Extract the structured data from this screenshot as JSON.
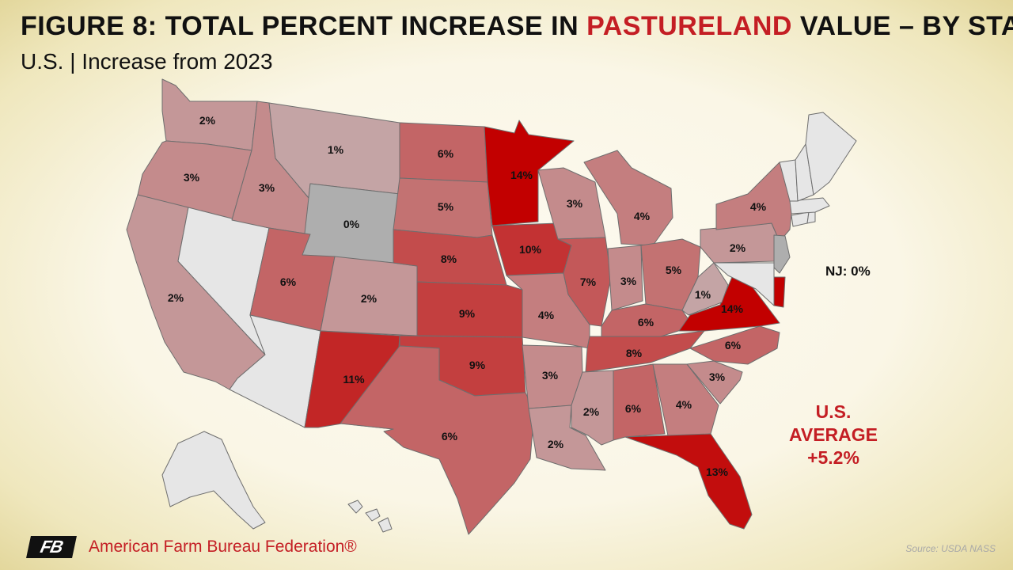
{
  "header": {
    "title_prefix": "FIGURE 8: TOTAL PERCENT INCREASE IN ",
    "title_highlight": "PASTURELAND",
    "title_suffix": " VALUE – BY STATE",
    "subtitle": "U.S. | Increase from 2023"
  },
  "legend_scale": {
    "no_data_color": "#e6e6e6",
    "zero_color": "#aeaeae",
    "low_color": "#c4a4a5",
    "high_color": "#c20000"
  },
  "states": [
    {
      "code": "WA",
      "value": 2,
      "label": "2%"
    },
    {
      "code": "OR",
      "value": 3,
      "label": "3%"
    },
    {
      "code": "CA",
      "value": 2,
      "label": "2%"
    },
    {
      "code": "NV",
      "value": null,
      "label": ""
    },
    {
      "code": "ID",
      "value": 3,
      "label": "3%"
    },
    {
      "code": "MT",
      "value": 1,
      "label": "1%"
    },
    {
      "code": "WY",
      "value": 0,
      "label": "0%"
    },
    {
      "code": "UT",
      "value": 6,
      "label": "6%"
    },
    {
      "code": "AZ",
      "value": null,
      "label": ""
    },
    {
      "code": "CO",
      "value": 2,
      "label": "2%"
    },
    {
      "code": "NM",
      "value": 11,
      "label": "11%"
    },
    {
      "code": "ND",
      "value": 6,
      "label": "6%"
    },
    {
      "code": "SD",
      "value": 5,
      "label": "5%"
    },
    {
      "code": "NE",
      "value": 8,
      "label": "8%"
    },
    {
      "code": "KS",
      "value": 9,
      "label": "9%"
    },
    {
      "code": "OK",
      "value": 9,
      "label": "9%"
    },
    {
      "code": "TX",
      "value": 6,
      "label": "6%"
    },
    {
      "code": "MN",
      "value": 14,
      "label": "14%"
    },
    {
      "code": "IA",
      "value": 10,
      "label": "10%"
    },
    {
      "code": "MO",
      "value": 4,
      "label": "4%"
    },
    {
      "code": "AR",
      "value": 3,
      "label": "3%"
    },
    {
      "code": "LA",
      "value": 2,
      "label": "2%"
    },
    {
      "code": "WI",
      "value": 3,
      "label": "3%"
    },
    {
      "code": "IL",
      "value": 7,
      "label": "7%"
    },
    {
      "code": "MI",
      "value": 4,
      "label": "4%"
    },
    {
      "code": "IN",
      "value": 3,
      "label": "3%"
    },
    {
      "code": "OH",
      "value": 5,
      "label": "5%"
    },
    {
      "code": "KY",
      "value": 6,
      "label": "6%"
    },
    {
      "code": "TN",
      "value": 8,
      "label": "8%"
    },
    {
      "code": "MS",
      "value": 2,
      "label": "2%"
    },
    {
      "code": "AL",
      "value": 6,
      "label": "6%"
    },
    {
      "code": "GA",
      "value": 4,
      "label": "4%"
    },
    {
      "code": "FL",
      "value": 13,
      "label": "13%"
    },
    {
      "code": "SC",
      "value": 3,
      "label": "3%"
    },
    {
      "code": "NC",
      "value": 6,
      "label": "6%"
    },
    {
      "code": "VA",
      "value": 14,
      "label": "14%"
    },
    {
      "code": "WV",
      "value": 1,
      "label": "1%"
    },
    {
      "code": "PA",
      "value": 2,
      "label": "2%"
    },
    {
      "code": "NY",
      "value": 4,
      "label": "4%"
    },
    {
      "code": "NJ",
      "value": 0,
      "label": ""
    },
    {
      "code": "DE",
      "value": 14,
      "label": ""
    },
    {
      "code": "MD",
      "value": null,
      "label": ""
    },
    {
      "code": "CT",
      "value": null,
      "label": ""
    },
    {
      "code": "RI",
      "value": null,
      "label": ""
    },
    {
      "code": "MA",
      "value": null,
      "label": ""
    },
    {
      "code": "VT",
      "value": null,
      "label": ""
    },
    {
      "code": "NH",
      "value": null,
      "label": ""
    },
    {
      "code": "ME",
      "value": null,
      "label": ""
    },
    {
      "code": "AK",
      "value": null,
      "label": ""
    },
    {
      "code": "HI",
      "value": null,
      "label": ""
    }
  ],
  "callouts": {
    "nj": "NJ: 0%",
    "us_average_line1": "U.S.",
    "us_average_line2": "AVERAGE",
    "us_average_line3": "+5.2%"
  },
  "footer": {
    "logo_text": "FB",
    "organization": "American Farm Bureau Federation®",
    "source": "Source: USDA NASS"
  }
}
